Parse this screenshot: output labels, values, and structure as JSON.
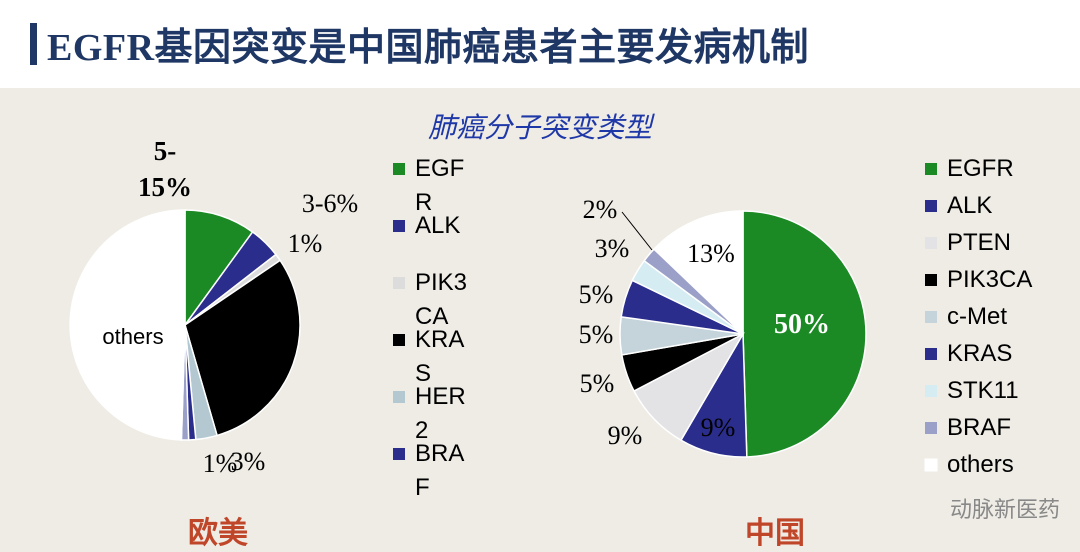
{
  "header": {
    "title": "EGFR基因突变是中国肺癌患者主要发病机制"
  },
  "subtitle": "肺癌分子突变类型",
  "chart_data": [
    {
      "type": "pie",
      "region": "欧美",
      "legend_position": "right",
      "slices": [
        {
          "name": "EGFR",
          "value": 10,
          "color": "#1b8a24",
          "label": "5-15%",
          "legend_text": "EGF R"
        },
        {
          "name": "ALK",
          "value": 4.5,
          "color": "#2a2d8c",
          "label": "3-6%",
          "legend_text": "ALK"
        },
        {
          "name": "PIK3CA",
          "value": 1,
          "color": "#dcdcdc",
          "label": "1%",
          "legend_text": "PIK3 CA"
        },
        {
          "name": "KRAS",
          "value": 30,
          "color": "#000000",
          "label": "",
          "legend_text": "KRA S"
        },
        {
          "name": "HER2",
          "value": 3,
          "color": "#b4c8d2",
          "label": "3%",
          "legend_text": "HER 2"
        },
        {
          "name": "BRAF",
          "value": 1,
          "color": "#2a2d8c",
          "label": "1%",
          "legend_text": "BRA F"
        },
        {
          "name": "other-slice",
          "value": 1,
          "color": "#9aa0c8",
          "label": "",
          "legend_text": ""
        },
        {
          "name": "others",
          "value": 49.5,
          "color": "#ffffff",
          "label": "others",
          "legend_text": ""
        }
      ]
    },
    {
      "type": "pie",
      "region": "中国",
      "legend_position": "right",
      "slices": [
        {
          "name": "EGFR",
          "value": 50,
          "color": "#1b8a24",
          "label": "50%"
        },
        {
          "name": "ALK",
          "value": 9,
          "color": "#2a2d8c",
          "label": "9%"
        },
        {
          "name": "PTEN",
          "value": 9,
          "color": "#e3e3e6",
          "label": "9%"
        },
        {
          "name": "PIK3CA",
          "value": 5,
          "color": "#000000",
          "label": "5%"
        },
        {
          "name": "c-Met",
          "value": 5,
          "color": "#c4d4da",
          "label": "5%"
        },
        {
          "name": "KRAS",
          "value": 5,
          "color": "#2a2d8c",
          "label": "5%"
        },
        {
          "name": "STK11",
          "value": 3,
          "color": "#d5ecf2",
          "label": "3%"
        },
        {
          "name": "BRAF",
          "value": 2,
          "color": "#9aa0c8",
          "label": "2%"
        },
        {
          "name": "others",
          "value": 13,
          "color": "#ffffff",
          "label": "13%"
        }
      ]
    }
  ],
  "watermark": "动脉新医药"
}
